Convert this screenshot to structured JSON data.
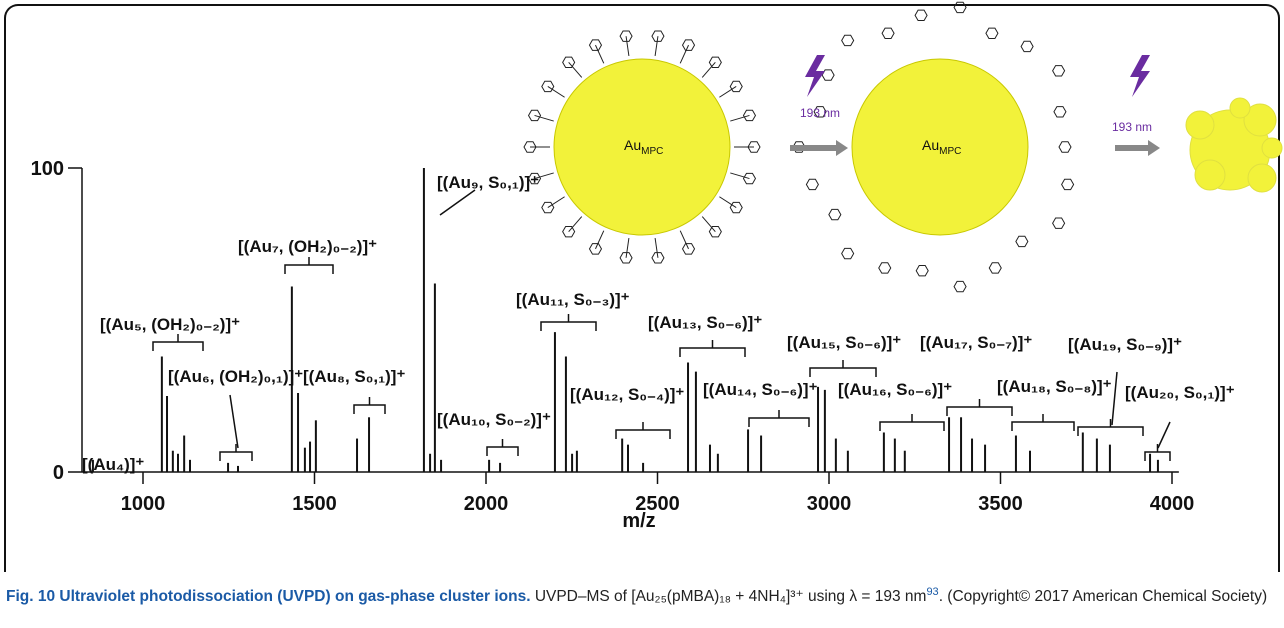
{
  "chart_data": {
    "type": "stem",
    "x": [
      854,
      1055,
      1070,
      1087,
      1102,
      1120,
      1137,
      1248,
      1277,
      1434,
      1452,
      1472,
      1487,
      1504,
      1624,
      1659,
      1819,
      1837,
      1851,
      1869,
      2009,
      2041,
      2201,
      2233,
      2251,
      2265,
      2397,
      2414,
      2458,
      2589,
      2612,
      2653,
      2676,
      2764,
      2802,
      2968,
      2988,
      3020,
      3055,
      3160,
      3192,
      3221,
      3350,
      3385,
      3417,
      3455,
      3545,
      3586,
      3740,
      3781,
      3819,
      3936,
      3959
    ],
    "values": [
      4,
      38,
      25,
      7,
      6,
      12,
      4,
      3,
      2,
      61,
      26,
      8,
      10,
      17,
      11,
      18,
      100,
      6,
      62,
      4,
      4,
      3,
      46,
      38,
      6,
      7,
      11,
      9,
      3,
      36,
      33,
      9,
      6,
      14,
      12,
      28,
      27,
      11,
      7,
      13,
      11,
      7,
      18,
      18,
      11,
      9,
      12,
      7,
      13,
      11,
      9,
      6,
      4
    ],
    "color": "#111111",
    "xlim": [
      800,
      4020
    ],
    "ylim": [
      0,
      100
    ],
    "xticks": [
      1000,
      1500,
      2000,
      2500,
      3000,
      3500,
      4000
    ],
    "yticks": [
      0,
      100
    ],
    "xlabel": "m/z",
    "annotations": [
      "[(Au₄)]⁺",
      "[(Au₅, (OH₂)₀₋₂)]⁺",
      "[(Au₆, (OH₂)₀,₁)]⁺",
      "[(Au₇, (OH₂)₀₋₂)]⁺",
      "[(Au₈, S₀,₁)]⁺",
      "[(Au₉, S₀,₁)]⁺",
      "[(Au₁₀, S₀₋₂)]⁺",
      "[(Au₁₁, S₀₋₃)]⁺",
      "[(Au₁₂, S₀₋₄)]⁺",
      "[(Au₁₃, S₀₋₆)]⁺",
      "[(Au₁₄, S₀₋₆)]⁺",
      "[(Au₁₅, S₀₋₆)]⁺",
      "[(Au₁₆, S₀₋₆)]⁺",
      "[(Au₁₇, S₀₋₇)]⁺",
      "[(Au₁₈, S₀₋₈)]⁺",
      "[(Au₁₉, S₀₋₉)]⁺",
      "[(Au₂₀, S₀,₁)]⁺"
    ]
  },
  "schematic": {
    "cluster_label": "Au",
    "cluster_label_sub": "MPC",
    "wavelength_1": "193 nm",
    "wavelength_2": "193 nm"
  },
  "caption": {
    "title": "Fig. 10 Ultraviolet photodissociation (UVPD) on gas-phase cluster ions.",
    "text": "UVPD–MS of [Au₂₅(pMBA)₁₈ + 4NH₄]³⁺ using λ = 193 nm",
    "reference": "93",
    "copyright": ". (Copyright© 2017 American Chemical Society)"
  }
}
